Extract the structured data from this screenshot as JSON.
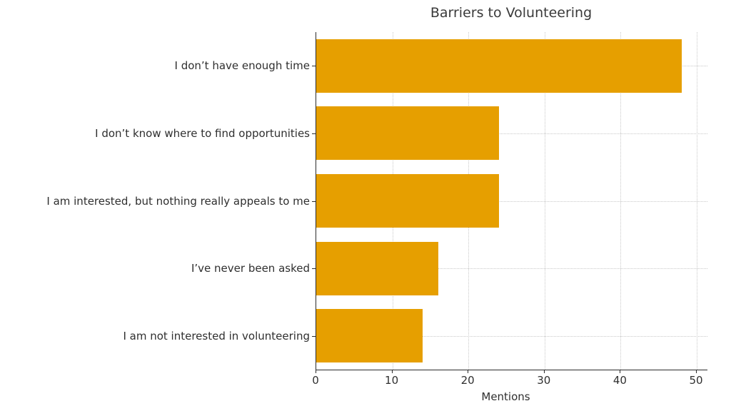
{
  "chart_data": {
    "type": "bar",
    "orientation": "horizontal",
    "title": "Barriers to Volunteering",
    "xlabel": "Mentions",
    "ylabel": "",
    "categories": [
      "I don’t have enough time",
      "I don’t know where to find opportunities",
      "I am interested, but nothing really appeals to me",
      "I’ve never been asked",
      "I am not interested in volunteering"
    ],
    "values": [
      48,
      24,
      24,
      16,
      14
    ],
    "xlim": [
      0,
      50
    ],
    "xticks": [
      0,
      10,
      20,
      30,
      40,
      50
    ],
    "grid": true,
    "legend": false,
    "bar_color": "#E69F00"
  },
  "colors": {
    "bar": "#E69F00",
    "text": "#2f2f2f",
    "grid": "#c9c9c9",
    "axis": "#2b2b2b",
    "background": "#ffffff"
  }
}
